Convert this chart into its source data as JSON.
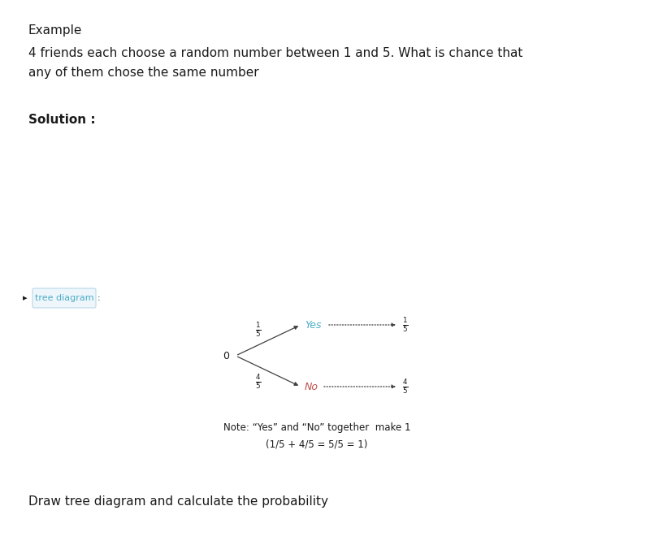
{
  "title": "Example",
  "question_line1": "4 friends each choose a random number between 1 and 5. What is chance that",
  "question_line2": "any of them chose the same number",
  "solution_label": "Solution :",
  "tree_diagram_label": "tree diagram",
  "draw_label": "Draw tree diagram and calculate the probability",
  "note_line1": "Note: “Yes” and “No” together  make 1",
  "note_line2": "(1/5 + 4/5 = 5/5 = 1)",
  "yes_color": "#4bacc6",
  "no_color": "#c0504d",
  "arrow_color": "#404040",
  "text_color": "#1a1a1a",
  "bg_color": "#ffffff",
  "fraction_color": "#1a1a1a",
  "tree_diagram_color": "#4bacc6",
  "tree_diagram_box_color": "#b8d9e8"
}
